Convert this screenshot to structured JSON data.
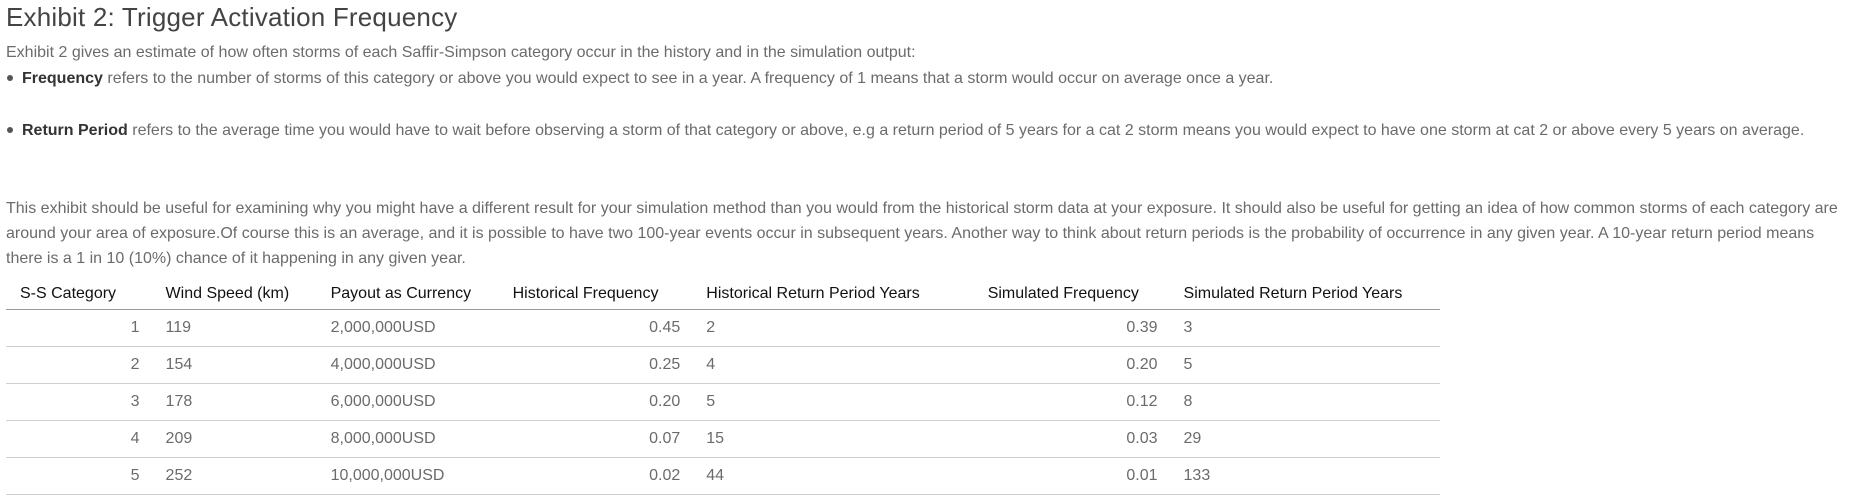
{
  "title": "Exhibit 2: Trigger Activation Frequency",
  "intro": "Exhibit 2 gives an estimate of how often storms of each Saffir-Simpson category occur in the history and in the simulation output:",
  "bullets": [
    {
      "term": "Frequency",
      "text": " refers to the number of storms of this category or above you would expect to see in a year. A frequency of 1 means that a storm would occur on average once a year."
    },
    {
      "term": "Return Period",
      "text": " refers to the average time you would have to wait before observing a storm of that category or above, e.g a return period of 5 years for a cat 2 storm means you would expect to have one storm at cat 2 or above every 5 years on average."
    }
  ],
  "body": "This exhibit should be useful for examining why you might have a different result for your simulation method than you would from the historical storm data at your exposure. It should also be useful for getting an idea of how common storms of each category are around your area of exposure.Of course this is an average, and it is possible to have two 100-year events occur in subsequent years. Another way to think about return periods is the probability of occurrence in any given year. A 10-year return period means there is a 1 in 10 (10%) chance of it happening in any given year.",
  "table": {
    "headers": [
      "S-S Category",
      "Wind Speed (km)",
      "Payout as Currency",
      "Historical Frequency",
      "Historical Return Period Years",
      "Simulated Frequency",
      "Simulated Return Period Years"
    ],
    "rows": [
      [
        "1",
        "119",
        "2,000,000USD",
        "0.45",
        "2",
        "0.39",
        "3"
      ],
      [
        "2",
        "154",
        "4,000,000USD",
        "0.25",
        "4",
        "0.20",
        "5"
      ],
      [
        "3",
        "178",
        "6,000,000USD",
        "0.20",
        "5",
        "0.12",
        "8"
      ],
      [
        "4",
        "209",
        "8,000,000USD",
        "0.07",
        "15",
        "0.03",
        "29"
      ],
      [
        "5",
        "252",
        "10,000,000USD",
        "0.02",
        "44",
        "0.01",
        "133"
      ]
    ]
  }
}
